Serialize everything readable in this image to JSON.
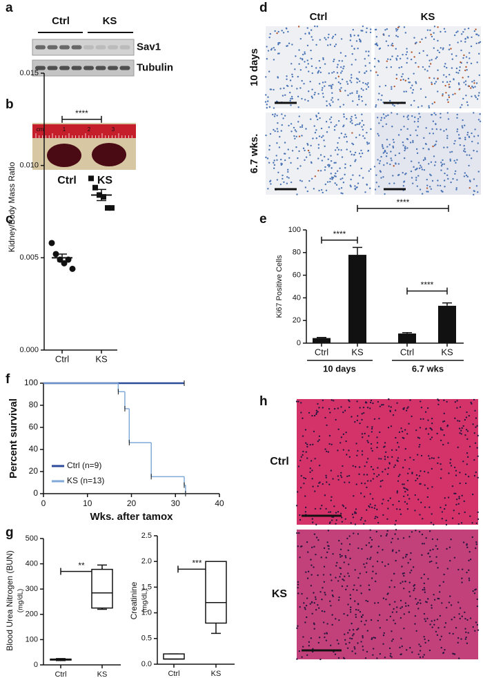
{
  "panel_labels": [
    "a",
    "b",
    "c",
    "d",
    "e",
    "f",
    "g",
    "h"
  ],
  "blot": {
    "groups": [
      "Ctrl",
      "KS"
    ],
    "bands": [
      "Sav1",
      "Tubulin"
    ]
  },
  "photo": {
    "ruler": [
      "cm",
      "1",
      "2",
      "3"
    ],
    "labels": [
      "Ctrl",
      "KS"
    ]
  },
  "histology_d": {
    "columns": [
      "Ctrl",
      "KS"
    ],
    "rows": [
      "10 days",
      "6.7 wks."
    ]
  },
  "histology_h": {
    "rows": [
      "Ctrl",
      "KS"
    ]
  },
  "chart_data": [
    {
      "type": "scatter",
      "ylabel": "Kidney/Body Mass Ratio",
      "categories": [
        "Ctrl",
        "KS"
      ],
      "points": [
        [
          0.0058,
          0.0052,
          0.0049,
          0.0047,
          0.0049,
          0.0044
        ],
        [
          0.0093,
          0.0088,
          0.0084,
          0.0083,
          0.0077,
          0.0077
        ]
      ],
      "means": [
        0.005,
        0.0084
      ],
      "sem": [
        0.0002,
        0.0003
      ],
      "ylim": [
        0,
        0.015
      ],
      "yticks": [
        {
          "value": 0,
          "label": "0.000"
        },
        {
          "value": 0.005,
          "label": "0.005"
        },
        {
          "value": 0.01,
          "label": "0.010"
        },
        {
          "value": 0.015,
          "label": "0.015"
        }
      ],
      "annotations": [
        {
          "text": "****"
        }
      ]
    },
    {
      "type": "bar",
      "ylabel": "Ki67 Positive Cells",
      "categories": [
        "Ctrl",
        "KS",
        "Ctrl",
        "KS"
      ],
      "groups": [
        "10 days",
        "6.7 wks"
      ],
      "values": [
        4.5,
        78,
        8.5,
        33
      ],
      "errors": [
        0.5,
        6.5,
        0.8,
        2.5
      ],
      "color": "#111111",
      "ylim": [
        0,
        100
      ],
      "yticks": [
        0,
        20,
        40,
        60,
        80,
        100
      ],
      "annotations": [
        {
          "text": "****"
        },
        {
          "text": "****"
        },
        {
          "text": "****"
        }
      ]
    },
    {
      "type": "survival",
      "ylabel": "Percent survival",
      "xlabel": "Wks. after tamox",
      "xlim": [
        0,
        40
      ],
      "xticks": [
        0,
        10,
        20,
        30,
        40
      ],
      "ylim": [
        0,
        100
      ],
      "yticks": [
        0,
        20,
        40,
        60,
        80,
        100
      ],
      "legend": "lower left",
      "series": [
        {
          "name": "Ctrl (n=9)",
          "color": "#2c4a9a",
          "x": [
            0,
            32
          ],
          "values": [
            100,
            100
          ]
        },
        {
          "name": "KS (n=13)",
          "color": "#7fa9d8",
          "x": [
            0,
            17,
            18.5,
            19.5,
            24.5,
            32,
            32.3
          ],
          "values": [
            100,
            92.3,
            76.9,
            46.2,
            15.4,
            7.7,
            0
          ]
        }
      ]
    },
    {
      "type": "box",
      "ylabel": "Blood Urea Nitrogen (BUN)",
      "yunit": "(mg/dL)",
      "categories": [
        "Ctrl",
        "KS"
      ],
      "boxes": [
        {
          "min": 17,
          "q1": 19,
          "median": 21,
          "q3": 23,
          "max": 25
        },
        {
          "min": 220,
          "q1": 225,
          "median": 285,
          "q3": 378,
          "max": 395
        }
      ],
      "ylim": [
        0,
        500
      ],
      "yticks": [
        0,
        100,
        200,
        300,
        400,
        500
      ],
      "annotations": [
        {
          "text": "**"
        }
      ]
    },
    {
      "type": "box",
      "ylabel": "Creatinine",
      "yunit": "(mg/dL)",
      "categories": [
        "Ctrl",
        "KS"
      ],
      "boxes": [
        {
          "min": 0.1,
          "q1": 0.1,
          "median": 0.1,
          "q3": 0.2,
          "max": 0.2
        },
        {
          "min": 0.6,
          "q1": 0.8,
          "median": 1.2,
          "q3": 2.0,
          "max": 2.0
        }
      ],
      "ylim": [
        0,
        2.5
      ],
      "yticks": [
        {
          "value": 0,
          "label": "0.0"
        },
        {
          "value": 0.5,
          "label": "0.5"
        },
        {
          "value": 1,
          "label": "1.0"
        },
        {
          "value": 1.5,
          "label": "1.5"
        },
        {
          "value": 2,
          "label": "2.0"
        },
        {
          "value": 2.5,
          "label": "2.5"
        }
      ],
      "annotations": [
        {
          "text": "***"
        }
      ]
    }
  ]
}
